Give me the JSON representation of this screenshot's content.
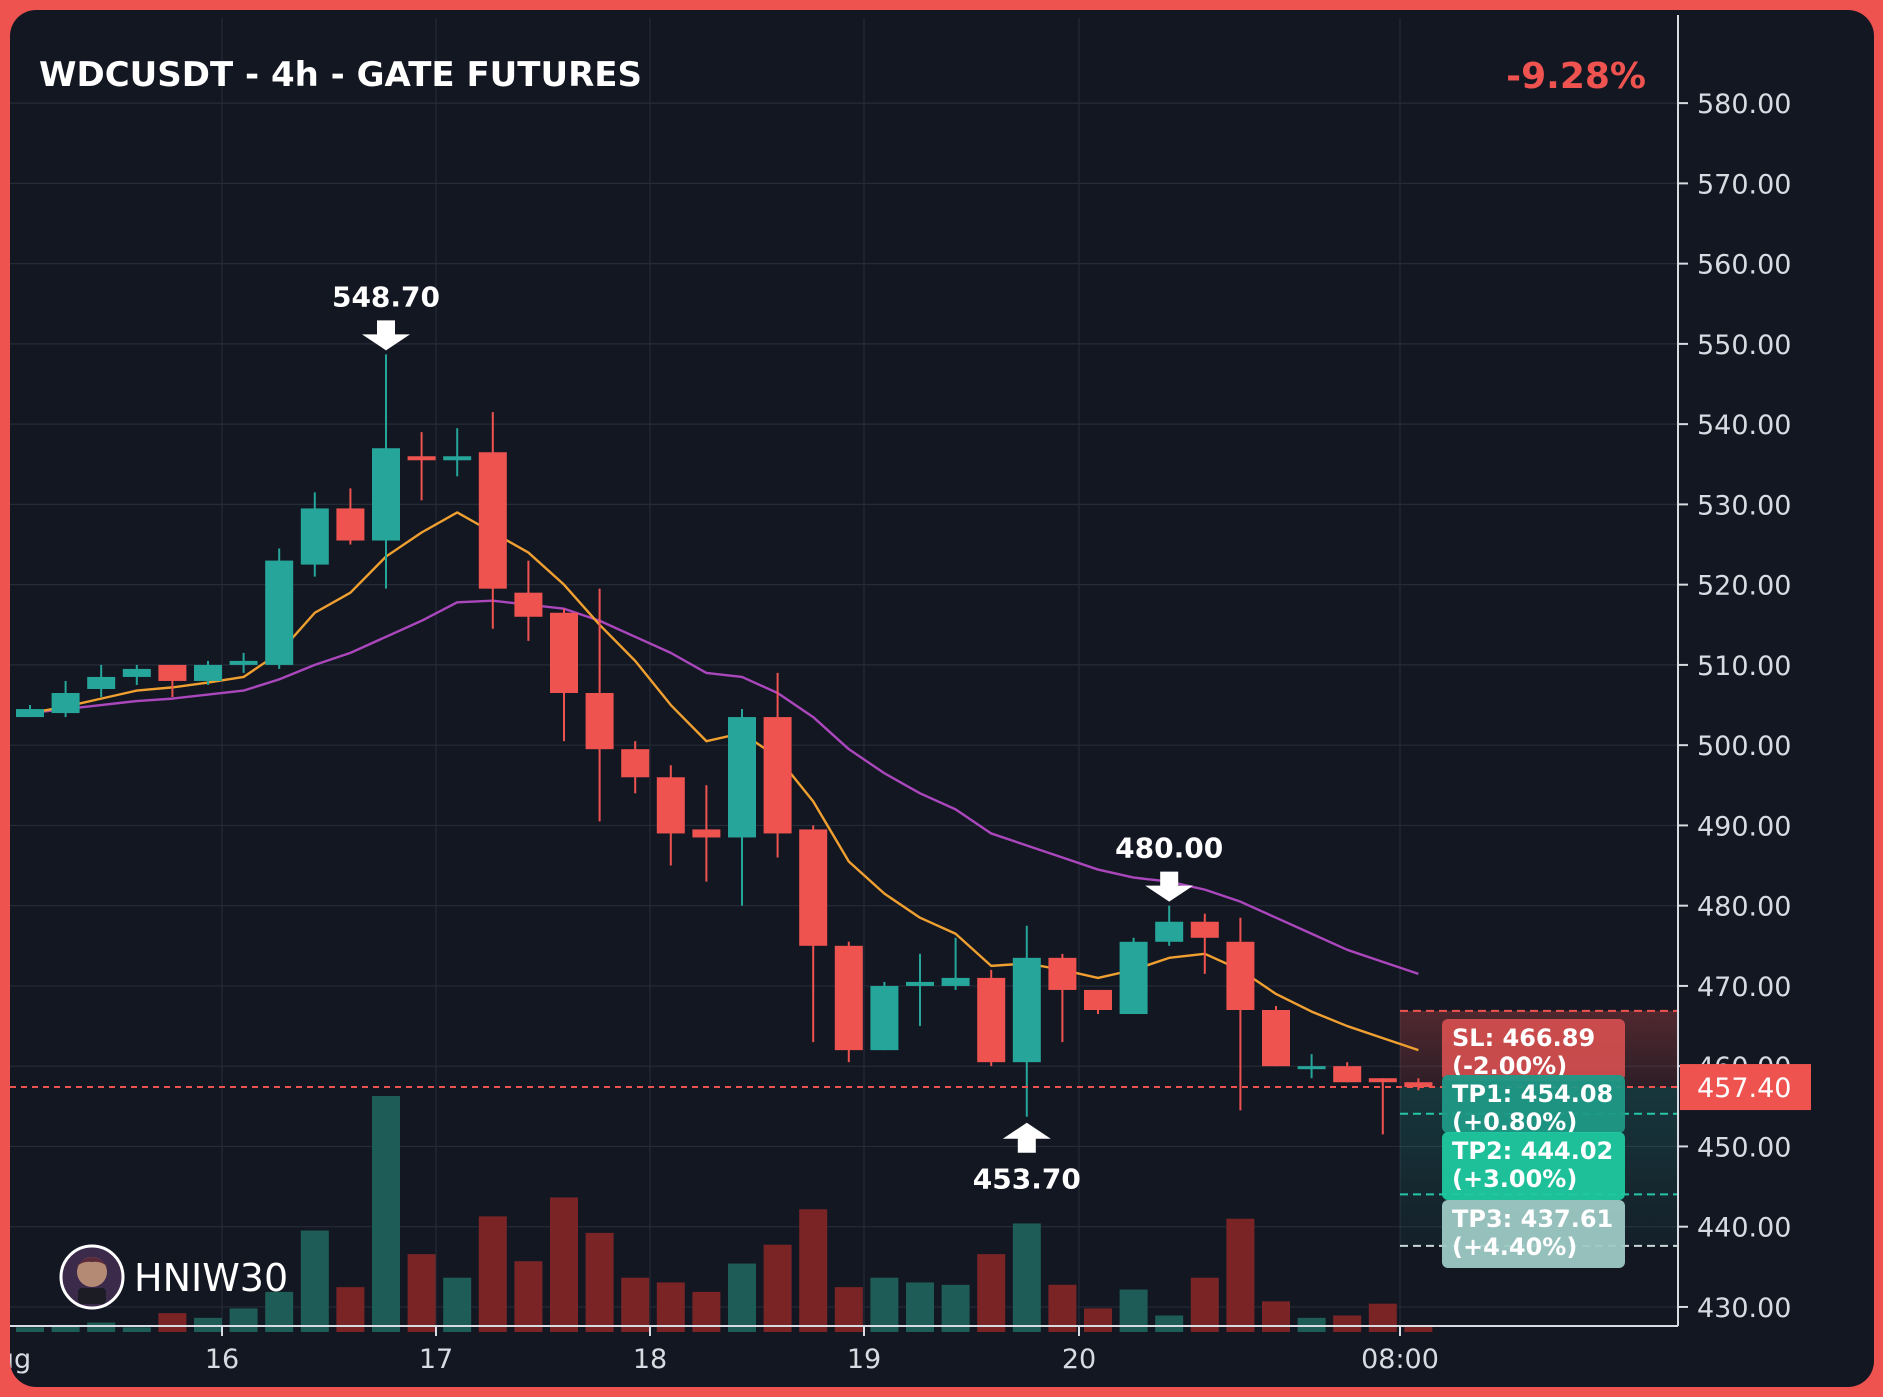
{
  "chart_data": {
    "type": "candlestick",
    "title": "WDCUSDT - 4h - GATE FUTURES",
    "change_pct_label": "-9.28%",
    "x_tick_labels": [
      "ug",
      "16",
      "17",
      "18",
      "19",
      "20",
      "08:00"
    ],
    "y_ticks": [
      430,
      440,
      450,
      460,
      470,
      480,
      490,
      500,
      510,
      520,
      530,
      540,
      550,
      560,
      570,
      580
    ],
    "y_tick_labels": [
      "430.00",
      "440.00",
      "450.00",
      "460.00",
      "470.00",
      "480.00",
      "490.00",
      "500.00",
      "510.00",
      "520.00",
      "530.00",
      "540.00",
      "550.00",
      "560.00",
      "570.00",
      "580.00"
    ],
    "ylim": [
      428,
      585
    ],
    "candles": [
      {
        "o": 503.5,
        "h": 505.0,
        "c": 504.5,
        "l": 503.5
      },
      {
        "o": 504.0,
        "h": 508.0,
        "c": 506.5,
        "l": 503.5
      },
      {
        "o": 507.0,
        "h": 510.0,
        "c": 508.5,
        "l": 506.0
      },
      {
        "o": 508.5,
        "h": 510.0,
        "c": 509.5,
        "l": 507.5
      },
      {
        "o": 510.0,
        "h": 510.0,
        "c": 508.0,
        "l": 506.0
      },
      {
        "o": 508.0,
        "h": 510.5,
        "c": 510.0,
        "l": 507.5
      },
      {
        "o": 510.0,
        "h": 511.5,
        "c": 510.5,
        "l": 509.0
      },
      {
        "o": 510.0,
        "h": 524.5,
        "c": 523.0,
        "l": 509.5
      },
      {
        "o": 522.5,
        "h": 531.5,
        "c": 529.5,
        "l": 521.0
      },
      {
        "o": 529.5,
        "h": 532.0,
        "c": 525.5,
        "l": 525.0
      },
      {
        "o": 525.5,
        "h": 548.7,
        "c": 537.0,
        "l": 519.5
      },
      {
        "o": 536.0,
        "h": 539.0,
        "c": 535.5,
        "l": 530.5
      },
      {
        "o": 535.5,
        "h": 539.5,
        "c": 536.0,
        "l": 533.5
      },
      {
        "o": 536.5,
        "h": 541.5,
        "c": 519.5,
        "l": 514.5
      },
      {
        "o": 519.0,
        "h": 523.0,
        "c": 516.0,
        "l": 513.0
      },
      {
        "o": 516.5,
        "h": 517.0,
        "c": 506.5,
        "l": 500.5
      },
      {
        "o": 506.5,
        "h": 519.5,
        "c": 499.5,
        "l": 490.5
      },
      {
        "o": 499.5,
        "h": 500.5,
        "c": 496.0,
        "l": 494.0
      },
      {
        "o": 496.0,
        "h": 497.5,
        "c": 489.0,
        "l": 485.0
      },
      {
        "o": 489.5,
        "h": 495.0,
        "c": 488.5,
        "l": 483.0
      },
      {
        "o": 488.5,
        "h": 504.5,
        "c": 503.5,
        "l": 480.0
      },
      {
        "o": 503.5,
        "h": 509.0,
        "c": 489.0,
        "l": 486.0
      },
      {
        "o": 489.5,
        "h": 490.0,
        "c": 475.0,
        "l": 463.0
      },
      {
        "o": 475.0,
        "h": 475.5,
        "c": 462.0,
        "l": 460.5
      },
      {
        "o": 462.0,
        "h": 470.5,
        "c": 470.0,
        "l": 462.0
      },
      {
        "o": 470.0,
        "h": 474.0,
        "c": 470.5,
        "l": 465.0
      },
      {
        "o": 470.0,
        "h": 476.0,
        "c": 471.0,
        "l": 469.5
      },
      {
        "o": 471.0,
        "h": 472.0,
        "c": 460.5,
        "l": 460.0
      },
      {
        "o": 460.5,
        "h": 477.5,
        "c": 473.5,
        "l": 453.7
      },
      {
        "o": 473.5,
        "h": 474.0,
        "c": 469.5,
        "l": 463.0
      },
      {
        "o": 469.5,
        "h": 469.5,
        "c": 467.0,
        "l": 466.5
      },
      {
        "o": 466.5,
        "h": 476.0,
        "c": 475.5,
        "l": 466.5
      },
      {
        "o": 475.5,
        "h": 480.0,
        "c": 478.0,
        "l": 475.0
      },
      {
        "o": 478.0,
        "h": 479.0,
        "c": 476.0,
        "l": 471.5
      },
      {
        "o": 475.5,
        "h": 478.5,
        "c": 467.0,
        "l": 454.5
      },
      {
        "o": 467.0,
        "h": 467.5,
        "c": 460.0,
        "l": 460.0
      },
      {
        "o": 460.0,
        "h": 461.5,
        "c": 460.0,
        "l": 458.5
      },
      {
        "o": 460.0,
        "h": 460.5,
        "c": 458.0,
        "l": 458.0
      },
      {
        "o": 458.5,
        "h": 458.5,
        "c": 458.0,
        "l": 451.5
      },
      {
        "o": 458.0,
        "h": 458.5,
        "c": 457.4,
        "l": 457.0
      }
    ],
    "volume_relative": [
      0.02,
      0.03,
      0.04,
      0.02,
      0.08,
      0.06,
      0.1,
      0.17,
      0.43,
      0.19,
      1.0,
      0.33,
      0.23,
      0.49,
      0.3,
      0.57,
      0.42,
      0.23,
      0.21,
      0.17,
      0.29,
      0.37,
      0.52,
      0.19,
      0.23,
      0.21,
      0.2,
      0.33,
      0.46,
      0.2,
      0.1,
      0.18,
      0.07,
      0.23,
      0.48,
      0.13,
      0.06,
      0.07,
      0.12,
      0.03
    ],
    "ma_fast": [
      504,
      504.8,
      505.8,
      506.8,
      507.2,
      507.8,
      508.5,
      511.5,
      516.5,
      519,
      523.5,
      526.5,
      529,
      526.5,
      524,
      520,
      515,
      510.5,
      505,
      500.5,
      501.5,
      498.5,
      493,
      485.5,
      481.5,
      478.5,
      476.5,
      472.5,
      472.8,
      472,
      471,
      472,
      473.5,
      474,
      472,
      469,
      466.8,
      465,
      463.5,
      462
    ],
    "ma_slow": [
      504,
      504.5,
      505,
      505.5,
      505.8,
      506.3,
      506.8,
      508.2,
      510,
      511.5,
      513.5,
      515.5,
      517.8,
      518,
      517.5,
      517,
      515.5,
      513.5,
      511.5,
      509,
      508.5,
      506.5,
      503.5,
      499.5,
      496.5,
      494,
      492,
      489,
      487.5,
      486,
      484.5,
      483.5,
      483,
      482,
      480.5,
      478.5,
      476.5,
      474.5,
      473,
      471.5
    ],
    "annotations": [
      {
        "label": "548.70",
        "candle": 10,
        "price": 548.7,
        "kind": "high"
      },
      {
        "label": "453.70",
        "candle": 28,
        "price": 453.7,
        "kind": "low"
      },
      {
        "label": "480.00",
        "candle": 32,
        "price": 480.0,
        "kind": "high"
      }
    ],
    "current_price": 457.4,
    "current_price_label": "457.40",
    "levels": [
      {
        "id": "sl",
        "price": 466.89,
        "line1": "SL: 466.89",
        "line2": "(-2.00%)",
        "color": "#e05252"
      },
      {
        "id": "tp1",
        "price": 454.08,
        "line1": "TP1: 454.08",
        "line2": "(+0.80%)",
        "color": "#1f9986"
      },
      {
        "id": "tp2",
        "price": 444.02,
        "line1": "TP2: 444.02",
        "line2": "(+3.00%)",
        "color": "#1fc8a0"
      },
      {
        "id": "tp3",
        "price": 437.61,
        "line1": "TP3: 437.61",
        "line2": "(+4.40%)",
        "color": "#9dc9c4"
      }
    ],
    "up_color": "#26a69a",
    "down_color": "#ef5350",
    "ma_fast_color": "#f0a030",
    "ma_slow_color": "#ab47bc",
    "grid": true
  },
  "watermark": {
    "name": "HNIW30"
  }
}
